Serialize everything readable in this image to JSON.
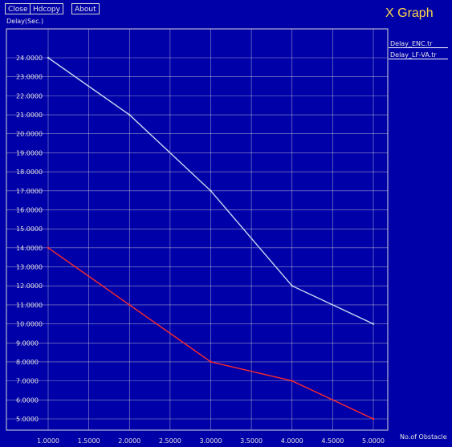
{
  "toolbar": {
    "close_label": "Close",
    "hdcopy_label": "Hdcopy",
    "about_label": "About"
  },
  "colors": {
    "background": "#0000a8",
    "grid": "#d8d8d8",
    "title": "#ffd84a",
    "series_1": "#c8d8f0",
    "series_2": "#ff2a2a"
  },
  "chart_data": {
    "type": "line",
    "title": "X Graph",
    "ylabel": "Delay(Sec.)",
    "xlabel": "No.of Obstacle",
    "xlim": [
      1,
      5
    ],
    "ylim": [
      5,
      24
    ],
    "x_ticks": [
      "1.0000",
      "1.5000",
      "2.0000",
      "2.5000",
      "3.0000",
      "3.5000",
      "4.0000",
      "4.5000",
      "5.0000"
    ],
    "y_ticks": [
      "24.0000",
      "23.0000",
      "22.0000",
      "21.0000",
      "20.0000",
      "19.0000",
      "18.0000",
      "17.0000",
      "16.0000",
      "15.0000",
      "14.0000",
      "13.0000",
      "12.0000",
      "11.0000",
      "10.0000",
      "9.0000",
      "8.0000",
      "7.0000",
      "6.0000",
      "5.0000"
    ],
    "grid": true,
    "legend_position": "top-right",
    "series": [
      {
        "name": "Delay_ENC.tr",
        "color": "#c8d8f0",
        "x": [
          1,
          2,
          3,
          4,
          5
        ],
        "y": [
          24,
          21,
          17,
          12,
          10
        ]
      },
      {
        "name": "Delay_LF-VA.tr",
        "color": "#ff2a2a",
        "x": [
          1,
          2,
          3,
          4,
          5
        ],
        "y": [
          14,
          11,
          8,
          7,
          5
        ]
      }
    ]
  }
}
